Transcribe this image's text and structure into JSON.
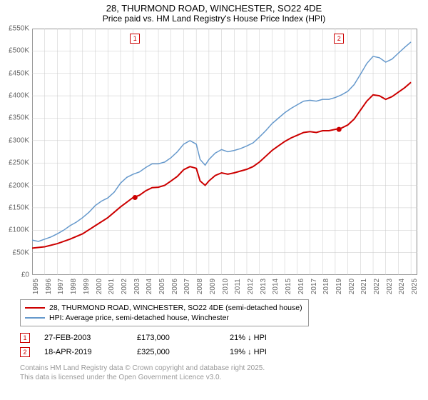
{
  "title": "28, THURMOND ROAD, WINCHESTER, SO22 4DE",
  "subtitle": "Price paid vs. HM Land Registry's House Price Index (HPI)",
  "chart": {
    "type": "line",
    "background_color": "#ffffff",
    "plot_border_color": "#888888",
    "grid_color": "#c8c8c8",
    "ylim": [
      0,
      550
    ],
    "ytick_step": 50,
    "ytick_prefix": "£",
    "ytick_suffix": "K",
    "xlim": [
      1995,
      2025.5
    ],
    "xticks": [
      1995,
      1996,
      1997,
      1998,
      1999,
      2000,
      2001,
      2002,
      2003,
      2004,
      2005,
      2006,
      2007,
      2008,
      2009,
      2010,
      2011,
      2012,
      2013,
      2014,
      2015,
      2016,
      2017,
      2018,
      2019,
      2020,
      2021,
      2022,
      2023,
      2024,
      2025
    ],
    "title_fontsize": 13,
    "axis_fontsize": 10,
    "series": [
      {
        "name": "28, THURMOND ROAD, WINCHESTER, SO22 4DE (semi-detached house)",
        "color": "#cc0000",
        "width": 2,
        "data": [
          [
            1995,
            60
          ],
          [
            1996,
            63
          ],
          [
            1997,
            70
          ],
          [
            1998,
            80
          ],
          [
            1999,
            92
          ],
          [
            2000,
            110
          ],
          [
            2001,
            128
          ],
          [
            2002,
            152
          ],
          [
            2003,
            173
          ],
          [
            2003.5,
            178
          ],
          [
            2004,
            188
          ],
          [
            2004.5,
            195
          ],
          [
            2005,
            196
          ],
          [
            2005.5,
            200
          ],
          [
            2006,
            210
          ],
          [
            2006.5,
            220
          ],
          [
            2007,
            235
          ],
          [
            2007.5,
            242
          ],
          [
            2008,
            238
          ],
          [
            2008.3,
            210
          ],
          [
            2008.7,
            200
          ],
          [
            2009,
            210
          ],
          [
            2009.5,
            222
          ],
          [
            2010,
            228
          ],
          [
            2010.5,
            225
          ],
          [
            2011,
            228
          ],
          [
            2011.5,
            232
          ],
          [
            2012,
            236
          ],
          [
            2012.5,
            242
          ],
          [
            2013,
            252
          ],
          [
            2013.5,
            265
          ],
          [
            2014,
            278
          ],
          [
            2014.5,
            288
          ],
          [
            2015,
            298
          ],
          [
            2015.5,
            306
          ],
          [
            2016,
            312
          ],
          [
            2016.5,
            318
          ],
          [
            2017,
            320
          ],
          [
            2017.5,
            318
          ],
          [
            2018,
            322
          ],
          [
            2018.5,
            322
          ],
          [
            2019,
            325
          ],
          [
            2019.5,
            328
          ],
          [
            2020,
            335
          ],
          [
            2020.5,
            348
          ],
          [
            2021,
            368
          ],
          [
            2021.5,
            388
          ],
          [
            2022,
            402
          ],
          [
            2022.5,
            400
          ],
          [
            2023,
            392
          ],
          [
            2023.5,
            398
          ],
          [
            2024,
            408
          ],
          [
            2024.5,
            418
          ],
          [
            2025,
            430
          ]
        ],
        "markers": [
          {
            "x": 2003.15,
            "y": 173,
            "label": "1"
          },
          {
            "x": 2019.3,
            "y": 325,
            "label": "2"
          }
        ]
      },
      {
        "name": "HPI: Average price, semi-detached house, Winchester",
        "color": "#6699cc",
        "width": 1.5,
        "data": [
          [
            1995,
            78
          ],
          [
            1995.5,
            75
          ],
          [
            1996,
            80
          ],
          [
            1996.5,
            85
          ],
          [
            1997,
            92
          ],
          [
            1997.5,
            100
          ],
          [
            1998,
            110
          ],
          [
            1998.5,
            118
          ],
          [
            1999,
            128
          ],
          [
            1999.5,
            140
          ],
          [
            2000,
            155
          ],
          [
            2000.5,
            165
          ],
          [
            2001,
            172
          ],
          [
            2001.5,
            185
          ],
          [
            2002,
            205
          ],
          [
            2002.5,
            218
          ],
          [
            2003,
            225
          ],
          [
            2003.5,
            230
          ],
          [
            2004,
            240
          ],
          [
            2004.5,
            248
          ],
          [
            2005,
            248
          ],
          [
            2005.5,
            252
          ],
          [
            2006,
            262
          ],
          [
            2006.5,
            275
          ],
          [
            2007,
            292
          ],
          [
            2007.5,
            300
          ],
          [
            2008,
            292
          ],
          [
            2008.3,
            258
          ],
          [
            2008.7,
            245
          ],
          [
            2009,
            258
          ],
          [
            2009.5,
            272
          ],
          [
            2010,
            280
          ],
          [
            2010.5,
            275
          ],
          [
            2011,
            278
          ],
          [
            2011.5,
            282
          ],
          [
            2012,
            288
          ],
          [
            2012.5,
            295
          ],
          [
            2013,
            308
          ],
          [
            2013.5,
            322
          ],
          [
            2014,
            338
          ],
          [
            2014.5,
            350
          ],
          [
            2015,
            362
          ],
          [
            2015.5,
            372
          ],
          [
            2016,
            380
          ],
          [
            2016.5,
            388
          ],
          [
            2017,
            390
          ],
          [
            2017.5,
            388
          ],
          [
            2018,
            392
          ],
          [
            2018.5,
            392
          ],
          [
            2019,
            396
          ],
          [
            2019.5,
            402
          ],
          [
            2020,
            410
          ],
          [
            2020.5,
            425
          ],
          [
            2021,
            448
          ],
          [
            2021.5,
            472
          ],
          [
            2022,
            488
          ],
          [
            2022.5,
            485
          ],
          [
            2023,
            475
          ],
          [
            2023.5,
            482
          ],
          [
            2024,
            495
          ],
          [
            2024.5,
            508
          ],
          [
            2025,
            520
          ]
        ]
      }
    ]
  },
  "legend": {
    "items": [
      {
        "color": "#cc0000",
        "width": 2,
        "label": "28, THURMOND ROAD, WINCHESTER, SO22 4DE (semi-detached house)"
      },
      {
        "color": "#6699cc",
        "width": 1.5,
        "label": "HPI: Average price, semi-detached house, Winchester"
      }
    ]
  },
  "annotations": [
    {
      "num": "1",
      "date": "27-FEB-2003",
      "price": "£173,000",
      "diff": "21% ↓ HPI"
    },
    {
      "num": "2",
      "date": "18-APR-2019",
      "price": "£325,000",
      "diff": "19% ↓ HPI"
    }
  ],
  "footer1": "Contains HM Land Registry data © Crown copyright and database right 2025.",
  "footer2": "This data is licensed under the Open Government Licence v3.0."
}
